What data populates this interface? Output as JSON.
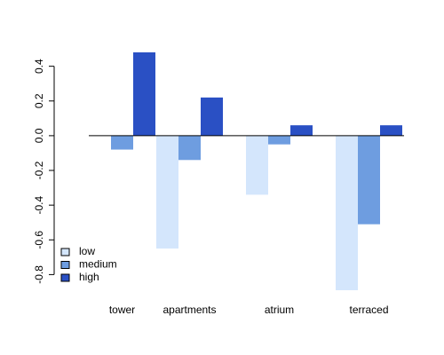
{
  "chart_data": {
    "type": "bar",
    "categories": [
      "tower",
      "apartments",
      "atrium",
      "terraced"
    ],
    "series": [
      {
        "name": "low",
        "color": "#d4e6fc",
        "values": [
          0.0,
          -0.65,
          -0.34,
          -0.89
        ]
      },
      {
        "name": "medium",
        "color": "#6e9de0",
        "values": [
          -0.08,
          -0.14,
          -0.05,
          -0.51
        ]
      },
      {
        "name": "high",
        "color": "#2a50c4",
        "values": [
          0.48,
          0.22,
          0.06,
          0.06
        ]
      }
    ],
    "y_ticks": [
      "-0.8",
      "-0.6",
      "-0.4",
      "-0.2",
      "0.0",
      "0.2",
      "0.4"
    ],
    "ylim": [
      -0.89,
      0.48
    ],
    "grid": false,
    "legend_placement": "bottom-left",
    "baseline": 0
  }
}
